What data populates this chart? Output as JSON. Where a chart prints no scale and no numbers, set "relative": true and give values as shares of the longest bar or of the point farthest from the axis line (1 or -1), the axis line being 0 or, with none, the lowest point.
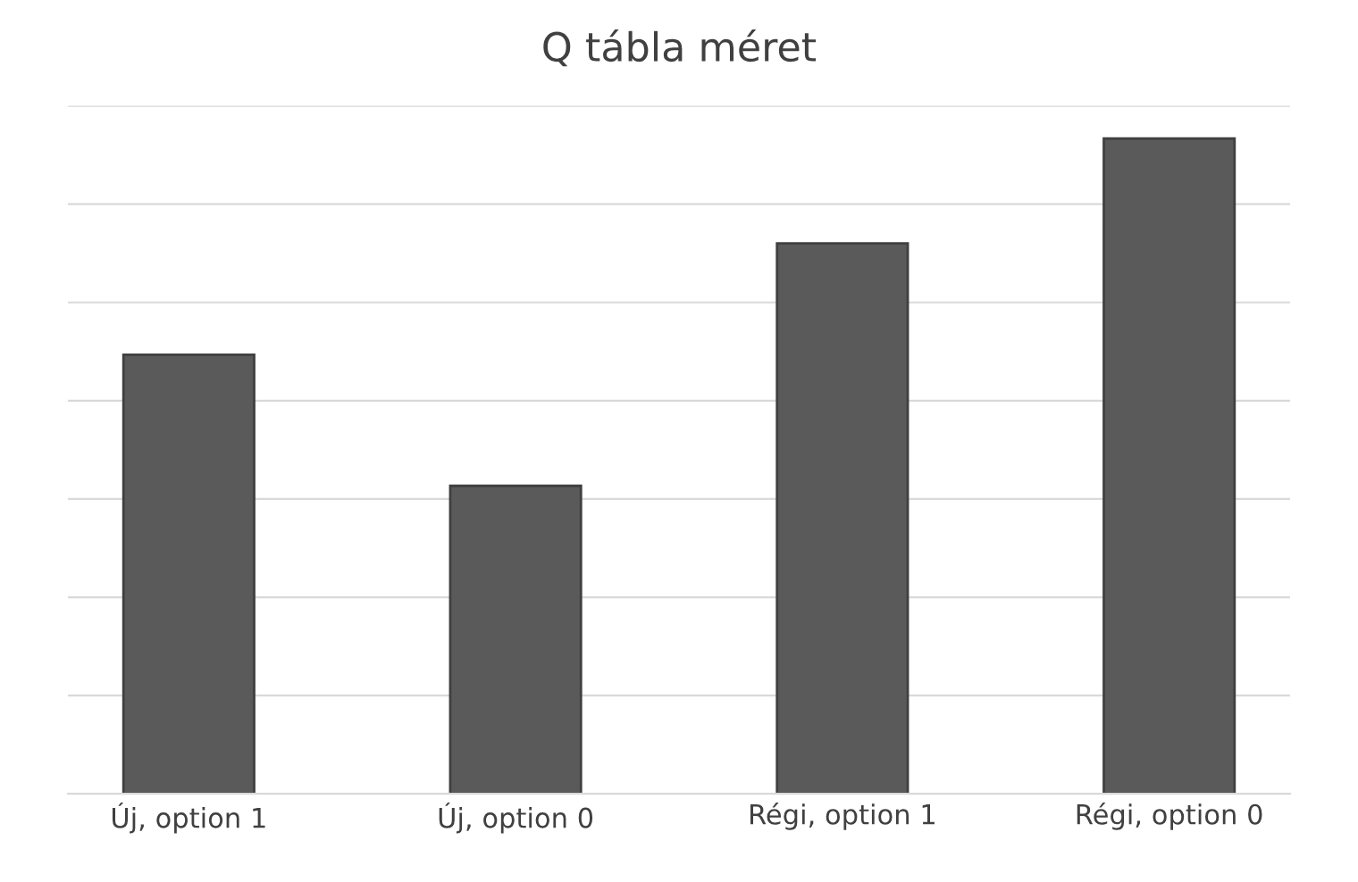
{
  "chart_data": {
    "type": "bar",
    "title": "Q tábla méret",
    "categories": [
      "Új, option 1",
      "Új, option 0",
      "Régi, option 1",
      "Régi, option 0"
    ],
    "values": [
      0.67,
      0.47,
      0.84,
      1.0
    ],
    "color": "#5a5a5a",
    "relative": true,
    "grid": "y"
  }
}
